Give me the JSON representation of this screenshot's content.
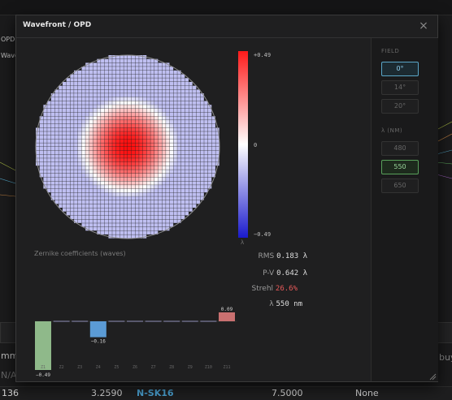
{
  "background": {
    "left_labels": [
      "OPD",
      "Wave"
    ],
    "left_bottom_labels": [
      "mm]",
      "N/A"
    ],
    "right_bottom_label": "buyg",
    "table_row": {
      "col1": "136",
      "col2": "3.2590",
      "col3": "N-SK16",
      "col4": "7.5000",
      "col5": "None"
    }
  },
  "dialog": {
    "title": "Wavefront / OPD",
    "close_glyph": "×",
    "colorbar": {
      "max_label": "+0.49",
      "mid_label": "0",
      "min_label": "−0.49",
      "unit": "λ"
    },
    "field": {
      "label": "FIELD",
      "options": [
        "0°",
        "14°",
        "20°"
      ],
      "selected": "0°"
    },
    "wavelength": {
      "label": "λ (NM)",
      "options": [
        "480",
        "550",
        "650"
      ],
      "selected": "550"
    },
    "zernike_title": "Zernike coefficients (waves)",
    "stats": {
      "rms_label": "RMS",
      "rms_value": "0.183 λ",
      "pv_label": "P-V",
      "pv_value": "0.642 λ",
      "strehl_label": "Strehl",
      "strehl_value": "26.6%",
      "lambda_label": "λ",
      "lambda_value": "550 nm"
    },
    "colors": {
      "positive": "#ff2020",
      "negative": "#2222cc",
      "z1": "#8fb98a",
      "z4": "#5b9bd5",
      "z11": "#c97070",
      "strehl": "#e85a5a"
    }
  },
  "chart_data": {
    "type": "bar",
    "title": "Zernike coefficients (waves)",
    "categories": [
      "Z1",
      "Z2",
      "Z3",
      "Z4",
      "Z5",
      "Z6",
      "Z7",
      "Z8",
      "Z9",
      "Z10",
      "Z11"
    ],
    "values": [
      -0.49,
      0,
      0,
      -0.16,
      0,
      0,
      0,
      0,
      0,
      0,
      0.09
    ],
    "value_labels": [
      "−0.49",
      "",
      "",
      "−0.16",
      "",
      "",
      "",
      "",
      "",
      "",
      "0.09"
    ],
    "ylim": [
      -0.49,
      0.49
    ]
  }
}
